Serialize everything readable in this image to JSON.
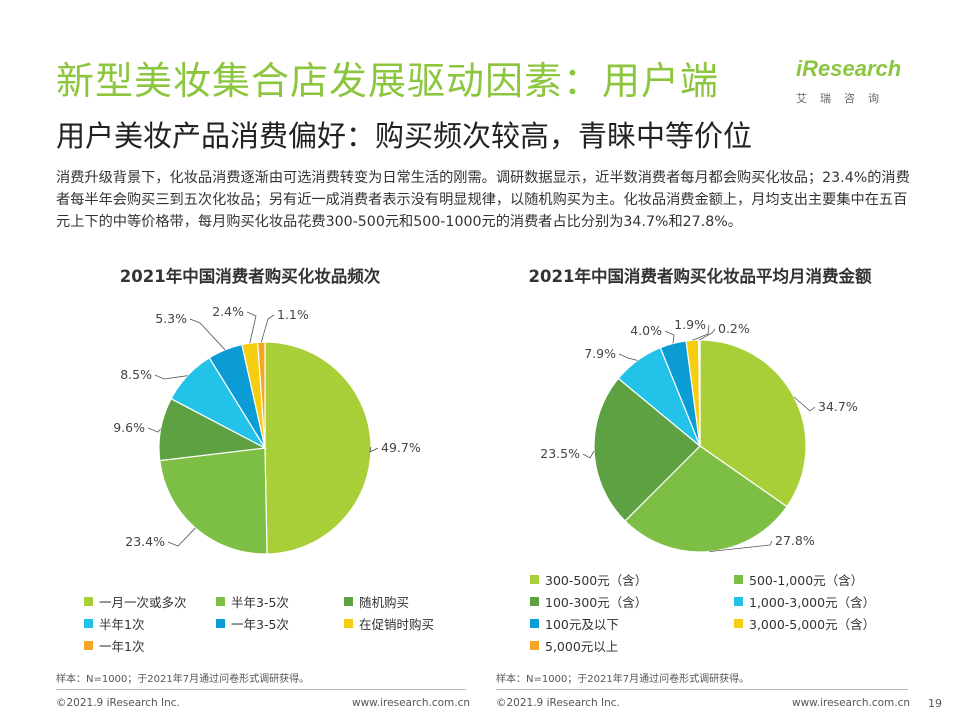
{
  "header": {
    "title": "新型美妆集合店发展驱动因素：用户端",
    "subtitle": "用户美妆产品消费偏好：购买频次较高，青睐中等价位",
    "logo_text": "iResearch",
    "logo_cn": "艾瑞咨询"
  },
  "intro": "消费升级背景下，化妆品消费逐渐由可选消费转变为日常生活的刚需。调研数据显示，近半数消费者每月都会购买化妆品；23.4%的消费者每半年会购买三到五次化妆品；另有近一成消费者表示没有明显规律，以随机购买为主。化妆品消费金额上，月均支出主要集中在五百元上下的中等价格带，每月购买化妆品花费300-500元和500-1000元的消费者占比分别为34.7%和27.8%。",
  "colors": {
    "green_light": "#a9cf38",
    "green_mid": "#7cbf44",
    "green_dark": "#5ea143",
    "cyan": "#23c2e8",
    "blue": "#0b9bd5",
    "yellow": "#f7cd10",
    "orange": "#f5a623",
    "title_green": "#8cc63f"
  },
  "chart_data": [
    {
      "type": "pie",
      "title": "2021年中国消费者购买化妆品频次",
      "labels": [
        "一月一次或多次",
        "半年3-5次",
        "随机购买",
        "半年1次",
        "一年3-5次",
        "在促销时购买",
        "一年1次"
      ],
      "values": [
        49.7,
        23.4,
        9.6,
        8.5,
        5.3,
        2.4,
        1.1
      ],
      "value_labels": [
        "49.7%",
        "23.4%",
        "9.6%",
        "8.5%",
        "5.3%",
        "2.4%",
        "1.1%"
      ],
      "colors": [
        "#a9cf38",
        "#7cbf44",
        "#5ea143",
        "#23c2e8",
        "#0b9bd5",
        "#f7cd10",
        "#f5a623"
      ],
      "legend": "bottom"
    },
    {
      "type": "pie",
      "title": "2021年中国消费者购买化妆品平均月消费金额",
      "labels": [
        "300-500元（含）",
        "500-1,000元（含）",
        "100-300元（含）",
        "1,000-3,000元（含）",
        "100元及以下",
        "3,000-5,000元（含）",
        "5,000元以上"
      ],
      "values": [
        34.7,
        27.8,
        23.5,
        7.9,
        4.0,
        1.9,
        0.2
      ],
      "value_labels": [
        "34.7%",
        "27.8%",
        "23.5%",
        "7.9%",
        "4.0%",
        "1.9%",
        "0.2%"
      ],
      "colors": [
        "#a9cf38",
        "#7cbf44",
        "#5ea143",
        "#23c2e8",
        "#0b9bd5",
        "#f7cd10",
        "#f5a623"
      ],
      "legend": "bottom"
    }
  ],
  "notes": {
    "left": "样本：N=1000；于2021年7月通过问卷形式调研获得。",
    "right": "样本：N=1000；于2021年7月通过问卷形式调研获得。"
  },
  "footer": {
    "copyright_left": "©2021.9 iResearch Inc.",
    "url_left": "www.iresearch.com.cn",
    "copyright_right": "©2021.9 iResearch Inc.",
    "url_right": "www.iresearch.com.cn",
    "page_number": "19"
  }
}
